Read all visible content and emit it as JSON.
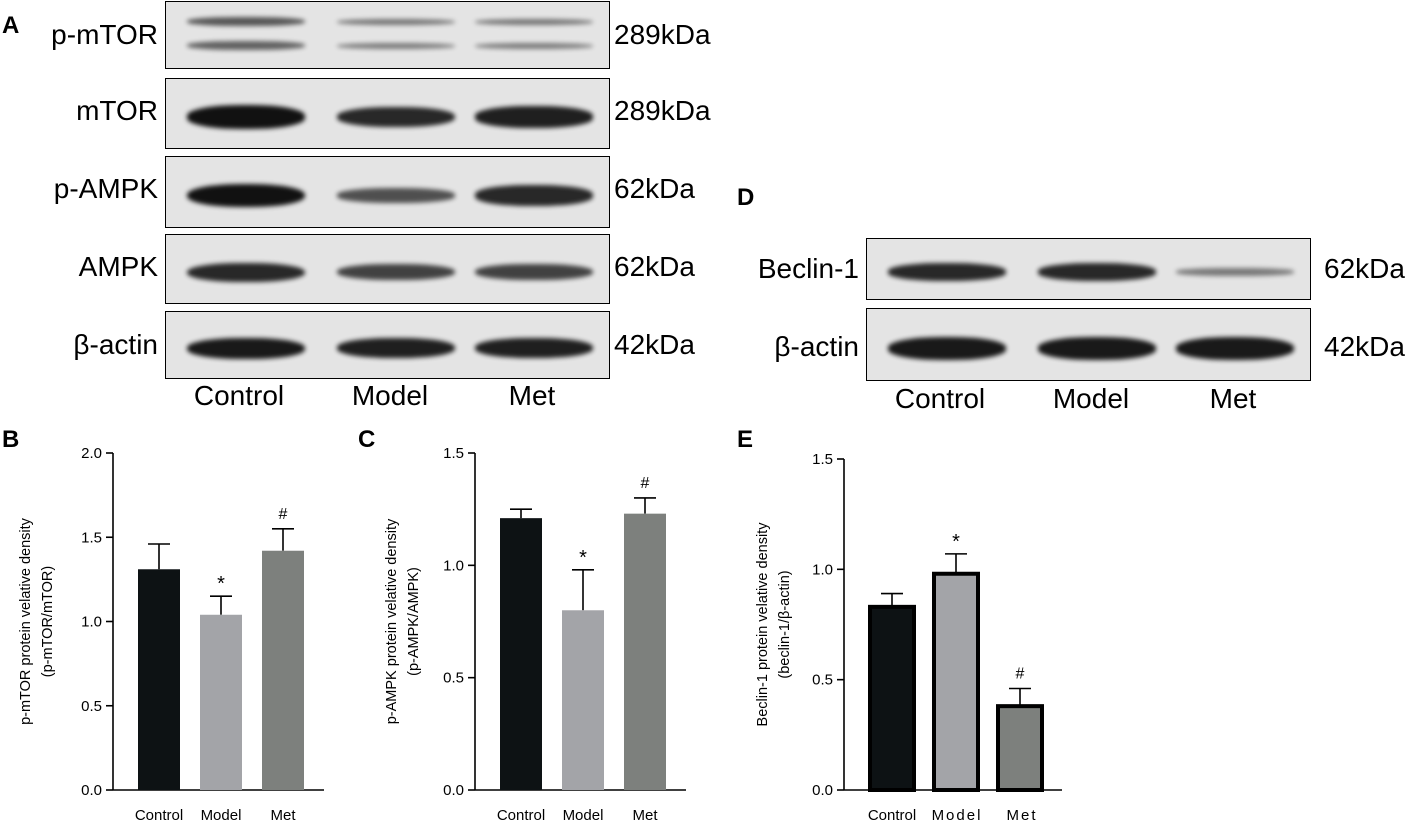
{
  "panels": {
    "A": {
      "letter": "A",
      "rows": [
        {
          "label": "p-mTOR",
          "kda": "289kDa",
          "intensity": [
            0.7,
            0.45,
            0.45
          ],
          "double": true
        },
        {
          "label": "mTOR",
          "kda": "289kDa",
          "intensity": [
            1.0,
            0.85,
            0.9
          ],
          "double": false
        },
        {
          "label": "p-AMPK",
          "kda": "62kDa",
          "intensity": [
            1.0,
            0.6,
            0.85
          ],
          "double": false
        },
        {
          "label": "AMPK",
          "kda": "62kDa",
          "intensity": [
            0.85,
            0.7,
            0.7
          ],
          "double": false
        },
        {
          "label": "β-actin",
          "kda": "42kDa",
          "intensity": [
            0.95,
            0.9,
            0.9
          ],
          "double": false
        }
      ],
      "lanes": [
        "Control",
        "Model",
        "Met"
      ]
    },
    "D": {
      "letter": "D",
      "rows": [
        {
          "label": "Beclin-1",
          "kda": "62kDa",
          "intensity": [
            0.85,
            0.85,
            0.35
          ],
          "double": false
        },
        {
          "label": "β-actin",
          "kda": "42kDa",
          "intensity": [
            0.95,
            0.95,
            0.95
          ],
          "double": false
        }
      ],
      "lanes": [
        "Control",
        "Model",
        "Met"
      ]
    }
  },
  "colors": {
    "control": "#0d1214",
    "model": "#a3a4a8",
    "met": "#7d807d",
    "blot_bg": "#e4e4e4",
    "band": "#111111"
  },
  "chart_data": [
    {
      "type": "bar",
      "panel": "B",
      "categories": [
        "Control",
        "Model",
        "Met"
      ],
      "values": [
        1.31,
        1.04,
        1.42
      ],
      "errors": [
        0.15,
        0.11,
        0.13
      ],
      "annotations": [
        "",
        "*",
        "#"
      ],
      "ylabel": "p-mTOR protein velative density",
      "ylabel2": "(p-mTOR/mTOR)",
      "ylim": [
        0,
        2.0
      ],
      "yticks": [
        "0.0",
        "0.5",
        "1.0",
        "1.5",
        "2.0"
      ]
    },
    {
      "type": "bar",
      "panel": "C",
      "categories": [
        "Control",
        "Model",
        "Met"
      ],
      "values": [
        1.21,
        0.8,
        1.23
      ],
      "errors": [
        0.04,
        0.18,
        0.07
      ],
      "annotations": [
        "",
        "*",
        "#"
      ],
      "ylabel": "p-AMPK protein velative density",
      "ylabel2": "(p-AMPK/AMPK)",
      "ylim": [
        0,
        1.5
      ],
      "yticks": [
        "0.0",
        "0.5",
        "1.0",
        "1.5"
      ]
    },
    {
      "type": "bar",
      "panel": "E",
      "categories": [
        "Control",
        "Model",
        "Met"
      ],
      "values": [
        0.83,
        0.98,
        0.38
      ],
      "errors": [
        0.06,
        0.09,
        0.08
      ],
      "annotations": [
        "",
        "*",
        "#"
      ],
      "ylabel": "Beclin-1 protein velative density",
      "ylabel2": "(beclin-1/β-actin)",
      "ylim": [
        0,
        1.5
      ],
      "yticks": [
        "0.0",
        "0.5",
        "1.0",
        "1.5"
      ]
    }
  ]
}
